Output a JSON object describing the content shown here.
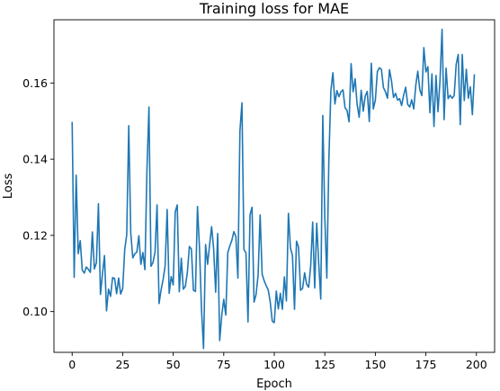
{
  "chart_data": {
    "type": "line",
    "title": "Training loss for MAE",
    "xlabel": "Epoch",
    "ylabel": "Loss",
    "xlim": [
      -9,
      209
    ],
    "ylim": [
      0.0893,
      0.1766
    ],
    "xticks": [
      0,
      25,
      50,
      75,
      100,
      125,
      150,
      175,
      200
    ],
    "yticks": [
      0.1,
      0.12,
      0.14,
      0.16
    ],
    "ytick_labels": [
      "0.10",
      "0.12",
      "0.14",
      "0.16"
    ],
    "grid": false,
    "legend": "none",
    "series": [
      {
        "color": "#1f77b4",
        "x_start": 0,
        "x_step": 1,
        "values": [
          0.1498,
          0.109,
          0.1358,
          0.1152,
          0.1186,
          0.1109,
          0.1101,
          0.1117,
          0.1111,
          0.1103,
          0.1209,
          0.1112,
          0.1128,
          0.1283,
          0.1045,
          0.1099,
          0.1147,
          0.1002,
          0.1059,
          0.104,
          0.1089,
          0.1087,
          0.1047,
          0.1088,
          0.1046,
          0.106,
          0.1162,
          0.1202,
          0.1488,
          0.1207,
          0.1141,
          0.1152,
          0.1156,
          0.1199,
          0.1124,
          0.1155,
          0.111,
          0.1371,
          0.1537,
          0.1119,
          0.1129,
          0.1156,
          0.128,
          0.1021,
          0.1057,
          0.1084,
          0.112,
          0.1268,
          0.1048,
          0.1092,
          0.107,
          0.1262,
          0.128,
          0.1052,
          0.114,
          0.1059,
          0.1066,
          0.1103,
          0.1171,
          0.1164,
          0.1056,
          0.1053,
          0.1276,
          0.1167,
          0.1005,
          0.0903,
          0.1176,
          0.1124,
          0.1175,
          0.1223,
          0.1165,
          0.1051,
          0.1205,
          0.0924,
          0.099,
          0.1032,
          0.0991,
          0.1155,
          0.1172,
          0.1187,
          0.121,
          0.1197,
          0.1088,
          0.1474,
          0.1548,
          0.1163,
          0.1154,
          0.0973,
          0.1254,
          0.1274,
          0.1025,
          0.1045,
          0.1096,
          0.1254,
          0.1098,
          0.1081,
          0.1068,
          0.1057,
          0.1025,
          0.0975,
          0.0971,
          0.1054,
          0.1007,
          0.1048,
          0.1006,
          0.1091,
          0.1028,
          0.1258,
          0.1167,
          0.1147,
          0.1006,
          0.1185,
          0.1169,
          0.1056,
          0.1061,
          0.1102,
          0.1072,
          0.1064,
          0.1119,
          0.1235,
          0.1062,
          0.1232,
          0.1125,
          0.1033,
          0.1515,
          0.1247,
          0.1088,
          0.1398,
          0.158,
          0.1627,
          0.1545,
          0.158,
          0.1564,
          0.1577,
          0.1582,
          0.1535,
          0.1528,
          0.1498,
          0.1651,
          0.1577,
          0.1611,
          0.1543,
          0.151,
          0.1581,
          0.1526,
          0.1566,
          0.1578,
          0.1499,
          0.1652,
          0.1532,
          0.1555,
          0.163,
          0.164,
          0.1636,
          0.1588,
          0.1577,
          0.156,
          0.1635,
          0.1605,
          0.1562,
          0.1573,
          0.1555,
          0.1559,
          0.1541,
          0.1568,
          0.1589,
          0.1544,
          0.1537,
          0.1556,
          0.1532,
          0.1594,
          0.1631,
          0.1582,
          0.1567,
          0.1693,
          0.1629,
          0.1643,
          0.1522,
          0.1624,
          0.1486,
          0.162,
          0.1525,
          0.1607,
          0.1741,
          0.1504,
          0.1639,
          0.1559,
          0.1568,
          0.156,
          0.1567,
          0.1649,
          0.1675,
          0.1491,
          0.1675,
          0.1554,
          0.1636,
          0.156,
          0.159,
          0.1517,
          0.1623
        ]
      }
    ]
  }
}
